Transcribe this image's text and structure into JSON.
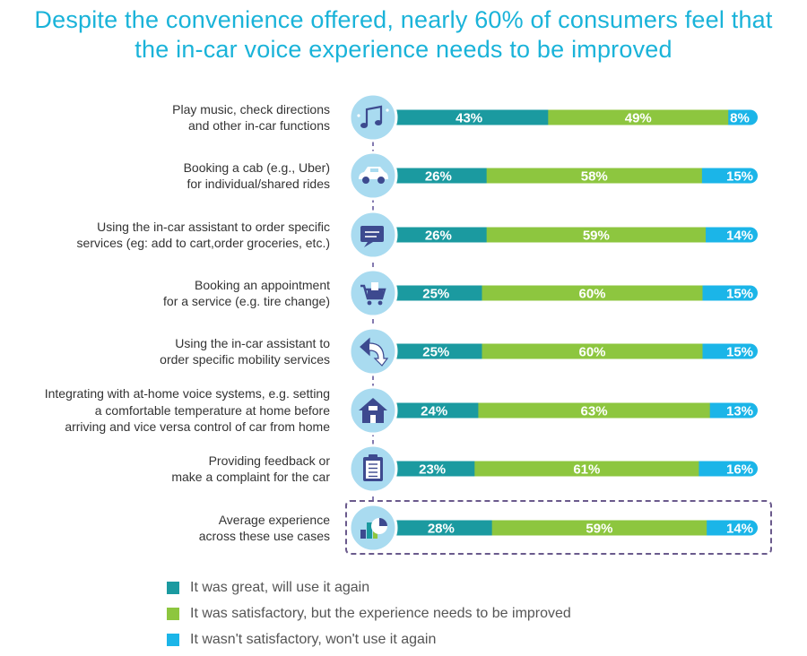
{
  "title": {
    "line1": "Despite the convenience offered, nearly 60% of consumers feel that",
    "line2": "the in-car voice experience needs to be improved"
  },
  "colors": {
    "great": "#1b9aa0",
    "satisfactory": "#8dc63f",
    "not_satisfactory": "#1bb5e8",
    "icon_bg": "#a9dbf0",
    "icon_dark": "#3d4a8f",
    "connector": "#5b4f96",
    "avg_border": "#6a5a8c"
  },
  "rows": [
    {
      "label_lines": [
        "Play music, check directions",
        "and other in-car functions"
      ],
      "icon": "music-note-icon"
    },
    {
      "label_lines": [
        "Booking a cab (e.g., Uber)",
        "for individual/shared rides"
      ],
      "icon": "car-icon"
    },
    {
      "label_lines": [
        "Using the in-car assistant to order specific",
        "services (eg: add to cart,order groceries, etc.)"
      ],
      "icon": "chat-bubble-icon"
    },
    {
      "label_lines": [
        "Booking an appointment",
        "for a service (e.g. tire change)"
      ],
      "icon": "shopping-cart-icon"
    },
    {
      "label_lines": [
        "Using the in-car assistant to",
        "order specific mobility services"
      ],
      "icon": "arrow-return-icon"
    },
    {
      "label_lines": [
        "Integrating with at-home voice systems, e.g. setting",
        "a comfortable temperature at home before",
        "arriving and vice versa control of car from home"
      ],
      "icon": "home-icon"
    },
    {
      "label_lines": [
        "Providing feedback or",
        "make a complaint for the car"
      ],
      "icon": "clipboard-icon"
    },
    {
      "label_lines": [
        "Average experience",
        "across these use cases"
      ],
      "icon": "bar-pie-icon"
    }
  ],
  "legend": [
    {
      "key": "great",
      "label": "It was great, will use it again"
    },
    {
      "key": "satisfactory",
      "label": "It was satisfactory, but the experience needs to be improved"
    },
    {
      "key": "not_satisfactory",
      "label": "It wasn't satisfactory, won't use it again"
    }
  ],
  "chart_data": {
    "type": "bar",
    "orientation": "horizontal",
    "stacked": true,
    "title": "Despite the convenience offered, nearly 60% of consumers feel that the in-car voice experience needs to be improved",
    "categories": [
      "Play music, check directions and other in-car functions",
      "Booking a cab (e.g., Uber) for individual/shared rides",
      "Using the in-car assistant to order specific services (eg: add to cart,order groceries, etc.)",
      "Booking an appointment for a service (e.g. tire change)",
      "Using the in-car assistant to order specific mobility services",
      "Integrating with at-home voice systems, e.g. setting a comfortable temperature at home before arriving and vice versa control of car from home",
      "Providing feedback or make a complaint for the car",
      "Average experience across these use cases"
    ],
    "series": [
      {
        "name": "It was great, will use it again",
        "values": [
          43,
          26,
          26,
          25,
          25,
          24,
          23,
          28
        ]
      },
      {
        "name": "It was satisfactory, but the experience needs to be improved",
        "values": [
          49,
          58,
          59,
          60,
          60,
          63,
          61,
          59
        ]
      },
      {
        "name": "It wasn't satisfactory, won't use it again",
        "values": [
          8,
          15,
          14,
          15,
          15,
          13,
          16,
          14
        ]
      }
    ],
    "unit": "%",
    "xlim": [
      0,
      100
    ],
    "legend_position": "bottom-left"
  }
}
